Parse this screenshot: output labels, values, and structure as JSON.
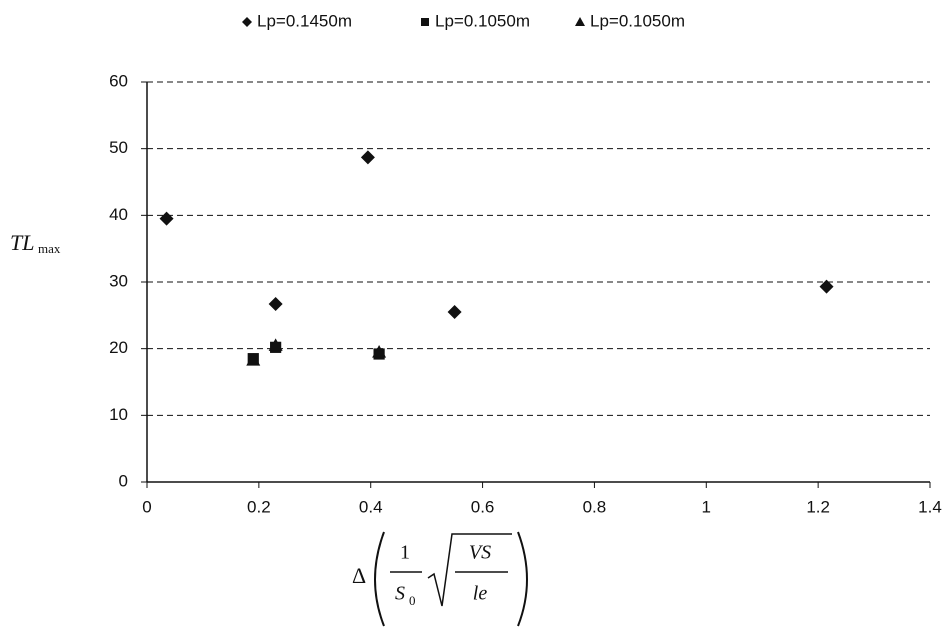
{
  "chart_data": {
    "type": "scatter",
    "y_label": {
      "text": "TL",
      "subscript": "max"
    },
    "x_label": {
      "delta": "Δ",
      "numerator": "1",
      "denominator": "S",
      "denominator_subscript": "0",
      "radicand_numerator": "VS",
      "radicand_denominator": "le"
    },
    "series": [
      {
        "name": "Lp=0.1450m",
        "marker": "diamond",
        "color": "#111111",
        "x": [
          0.035,
          0.23,
          0.395,
          0.55,
          1.215
        ],
        "values": [
          39.5,
          26.7,
          48.7,
          25.5,
          29.3
        ]
      },
      {
        "name": "Lp=0.1050m",
        "marker": "square",
        "color": "#111111",
        "x": [
          0.19,
          0.23,
          0.415
        ],
        "values": [
          18.5,
          20.2,
          19.2
        ]
      },
      {
        "name": "Lp=0.1050m",
        "marker": "triangle",
        "color": "#111111",
        "x": [
          0.19,
          0.23,
          0.415
        ],
        "values": [
          18.3,
          20.5,
          19.5
        ]
      }
    ],
    "xlim": [
      0,
      1.4
    ],
    "xticks": [
      0,
      0.2,
      0.4,
      0.6,
      0.8,
      1,
      1.2,
      1.4
    ],
    "ylim": [
      0,
      60
    ],
    "yticks": [
      0,
      10,
      20,
      30,
      40,
      50,
      60
    ],
    "grid": true
  }
}
